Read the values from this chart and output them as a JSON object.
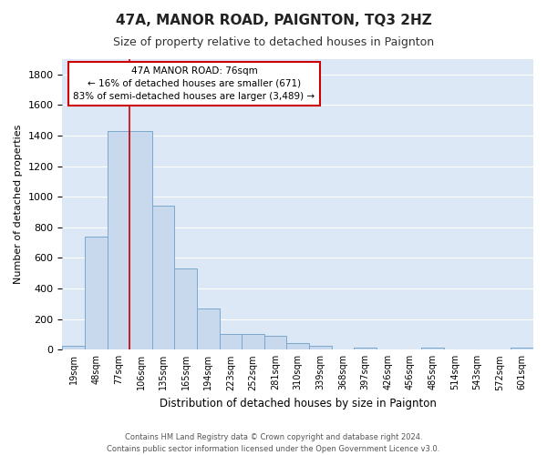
{
  "title": "47A, MANOR ROAD, PAIGNTON, TQ3 2HZ",
  "subtitle": "Size of property relative to detached houses in Paignton",
  "xlabel": "Distribution of detached houses by size in Paignton",
  "ylabel": "Number of detached properties",
  "bar_labels": [
    "19sqm",
    "48sqm",
    "77sqm",
    "106sqm",
    "135sqm",
    "165sqm",
    "194sqm",
    "223sqm",
    "252sqm",
    "281sqm",
    "310sqm",
    "339sqm",
    "368sqm",
    "397sqm",
    "426sqm",
    "456sqm",
    "485sqm",
    "514sqm",
    "543sqm",
    "572sqm",
    "601sqm"
  ],
  "bar_values": [
    25,
    740,
    1430,
    1430,
    940,
    530,
    270,
    105,
    105,
    90,
    45,
    25,
    0,
    15,
    0,
    0,
    15,
    0,
    0,
    0,
    15
  ],
  "bar_color": "#c8d8ed",
  "bar_edge_color": "#7aa8cc",
  "axes_bg_color": "#dce8f5",
  "fig_bg_color": "#ffffff",
  "grid_color": "#ffffff",
  "red_line_x": 2.5,
  "annotation_title": "47A MANOR ROAD: 76sqm",
  "annotation_line1": "← 16% of detached houses are smaller (671)",
  "annotation_line2": "83% of semi-detached houses are larger (3,489) →",
  "annotation_box_color": "#ffffff",
  "annotation_border_color": "#cc0000",
  "footer_line1": "Contains HM Land Registry data © Crown copyright and database right 2024.",
  "footer_line2": "Contains public sector information licensed under the Open Government Licence v3.0.",
  "ylim": [
    0,
    1900
  ],
  "yticks": [
    0,
    200,
    400,
    600,
    800,
    1000,
    1200,
    1400,
    1600,
    1800
  ]
}
